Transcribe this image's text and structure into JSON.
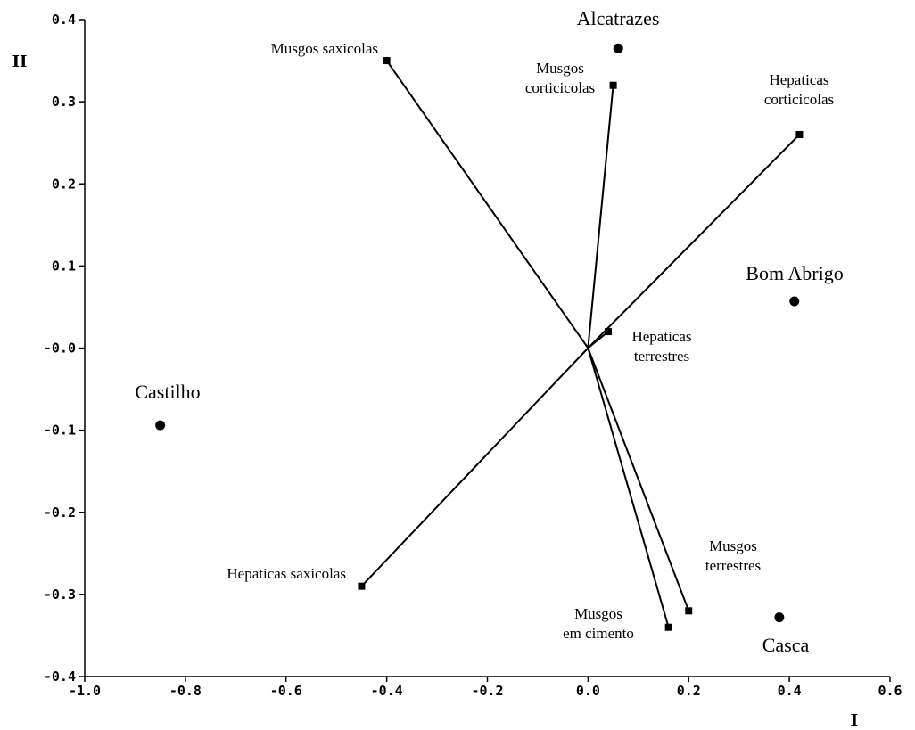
{
  "chart_data": {
    "type": "scatter",
    "xlabel": "I",
    "ylabel": "II",
    "xlim": [
      -1.0,
      0.6
    ],
    "ylim": [
      -0.4,
      0.4
    ],
    "xticks": [
      -1.0,
      -0.8,
      -0.6,
      -0.4,
      -0.2,
      0.0,
      0.2,
      0.4,
      0.6
    ],
    "xtick_labels": [
      "-1.0",
      "-0.8",
      "-0.6",
      "-0.4",
      "-0.2",
      "0.0",
      "0.2",
      "0.4",
      "0.6"
    ],
    "yticks": [
      0.4,
      0.3,
      0.2,
      0.1,
      0.0,
      -0.1,
      -0.2,
      -0.3,
      -0.4
    ],
    "ytick_labels": [
      "0.4",
      "0.3",
      "0.2",
      "0.1",
      "-0.0",
      "-0.1",
      "-0.2",
      "-0.3",
      "-0.4"
    ],
    "grid": false,
    "vectors": [
      {
        "label": [
          "Musgos saxicolas"
        ],
        "x": -0.4,
        "y": 0.35
      },
      {
        "label": [
          "Musgos",
          "corticicolas"
        ],
        "x": 0.05,
        "y": 0.32
      },
      {
        "label": [
          "Hepaticas",
          "corticicolas"
        ],
        "x": 0.42,
        "y": 0.26
      },
      {
        "label": [
          "Hepaticas",
          "terrestres"
        ],
        "x": 0.04,
        "y": 0.02
      },
      {
        "label": [
          "Hepaticas saxicolas"
        ],
        "x": -0.45,
        "y": -0.29
      },
      {
        "label": [
          "Musgos",
          "terrestres"
        ],
        "x": 0.2,
        "y": -0.32
      },
      {
        "label": [
          "Musgos",
          "em cimento"
        ],
        "x": 0.16,
        "y": -0.34
      }
    ],
    "sites": [
      {
        "label": "Alcatrazes",
        "x": 0.06,
        "y": 0.365
      },
      {
        "label": "Bom Abrigo",
        "x": 0.41,
        "y": 0.057
      },
      {
        "label": "Castilho",
        "x": -0.85,
        "y": -0.094
      },
      {
        "label": "Casca",
        "x": 0.38,
        "y": -0.328
      }
    ]
  }
}
